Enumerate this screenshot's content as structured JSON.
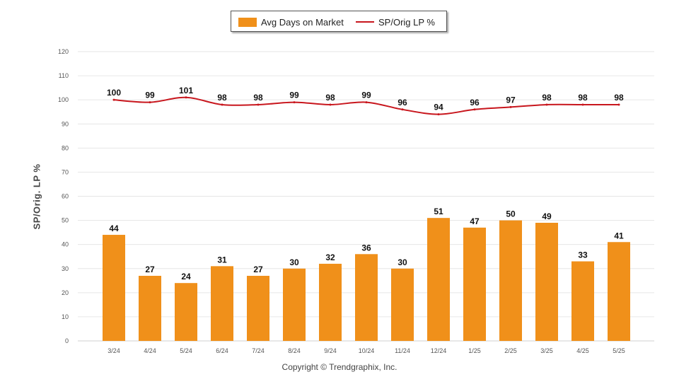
{
  "legend": {
    "bar_label": "Avg Days on Market",
    "line_label": "SP/Orig LP %"
  },
  "footer": {
    "copyright": "Copyright © Trendgraphix, Inc."
  },
  "colors": {
    "bar": "#f0901a",
    "line": "#c8161d",
    "grid": "#e6e6e6"
  },
  "chart_data": {
    "type": "bar",
    "title": "",
    "xlabel": "",
    "ylabel": "SP/Orig. LP %",
    "ylim": [
      0,
      120
    ],
    "yticks": [
      0,
      10,
      20,
      30,
      40,
      50,
      60,
      70,
      80,
      90,
      100,
      110,
      120
    ],
    "grid": true,
    "legend_position": "top-center",
    "categories": [
      "3/24",
      "4/24",
      "5/24",
      "6/24",
      "7/24",
      "8/24",
      "9/24",
      "10/24",
      "11/24",
      "12/24",
      "1/25",
      "2/25",
      "3/25",
      "4/25",
      "5/25"
    ],
    "series": [
      {
        "name": "Avg Days on Market",
        "type": "bar",
        "values": [
          44,
          27,
          24,
          31,
          27,
          30,
          32,
          36,
          30,
          51,
          47,
          50,
          49,
          33,
          41
        ]
      },
      {
        "name": "SP/Orig LP %",
        "type": "line",
        "values": [
          100,
          99,
          101,
          98,
          98,
          99,
          98,
          99,
          96,
          94,
          96,
          97,
          98,
          98,
          98
        ]
      }
    ]
  }
}
